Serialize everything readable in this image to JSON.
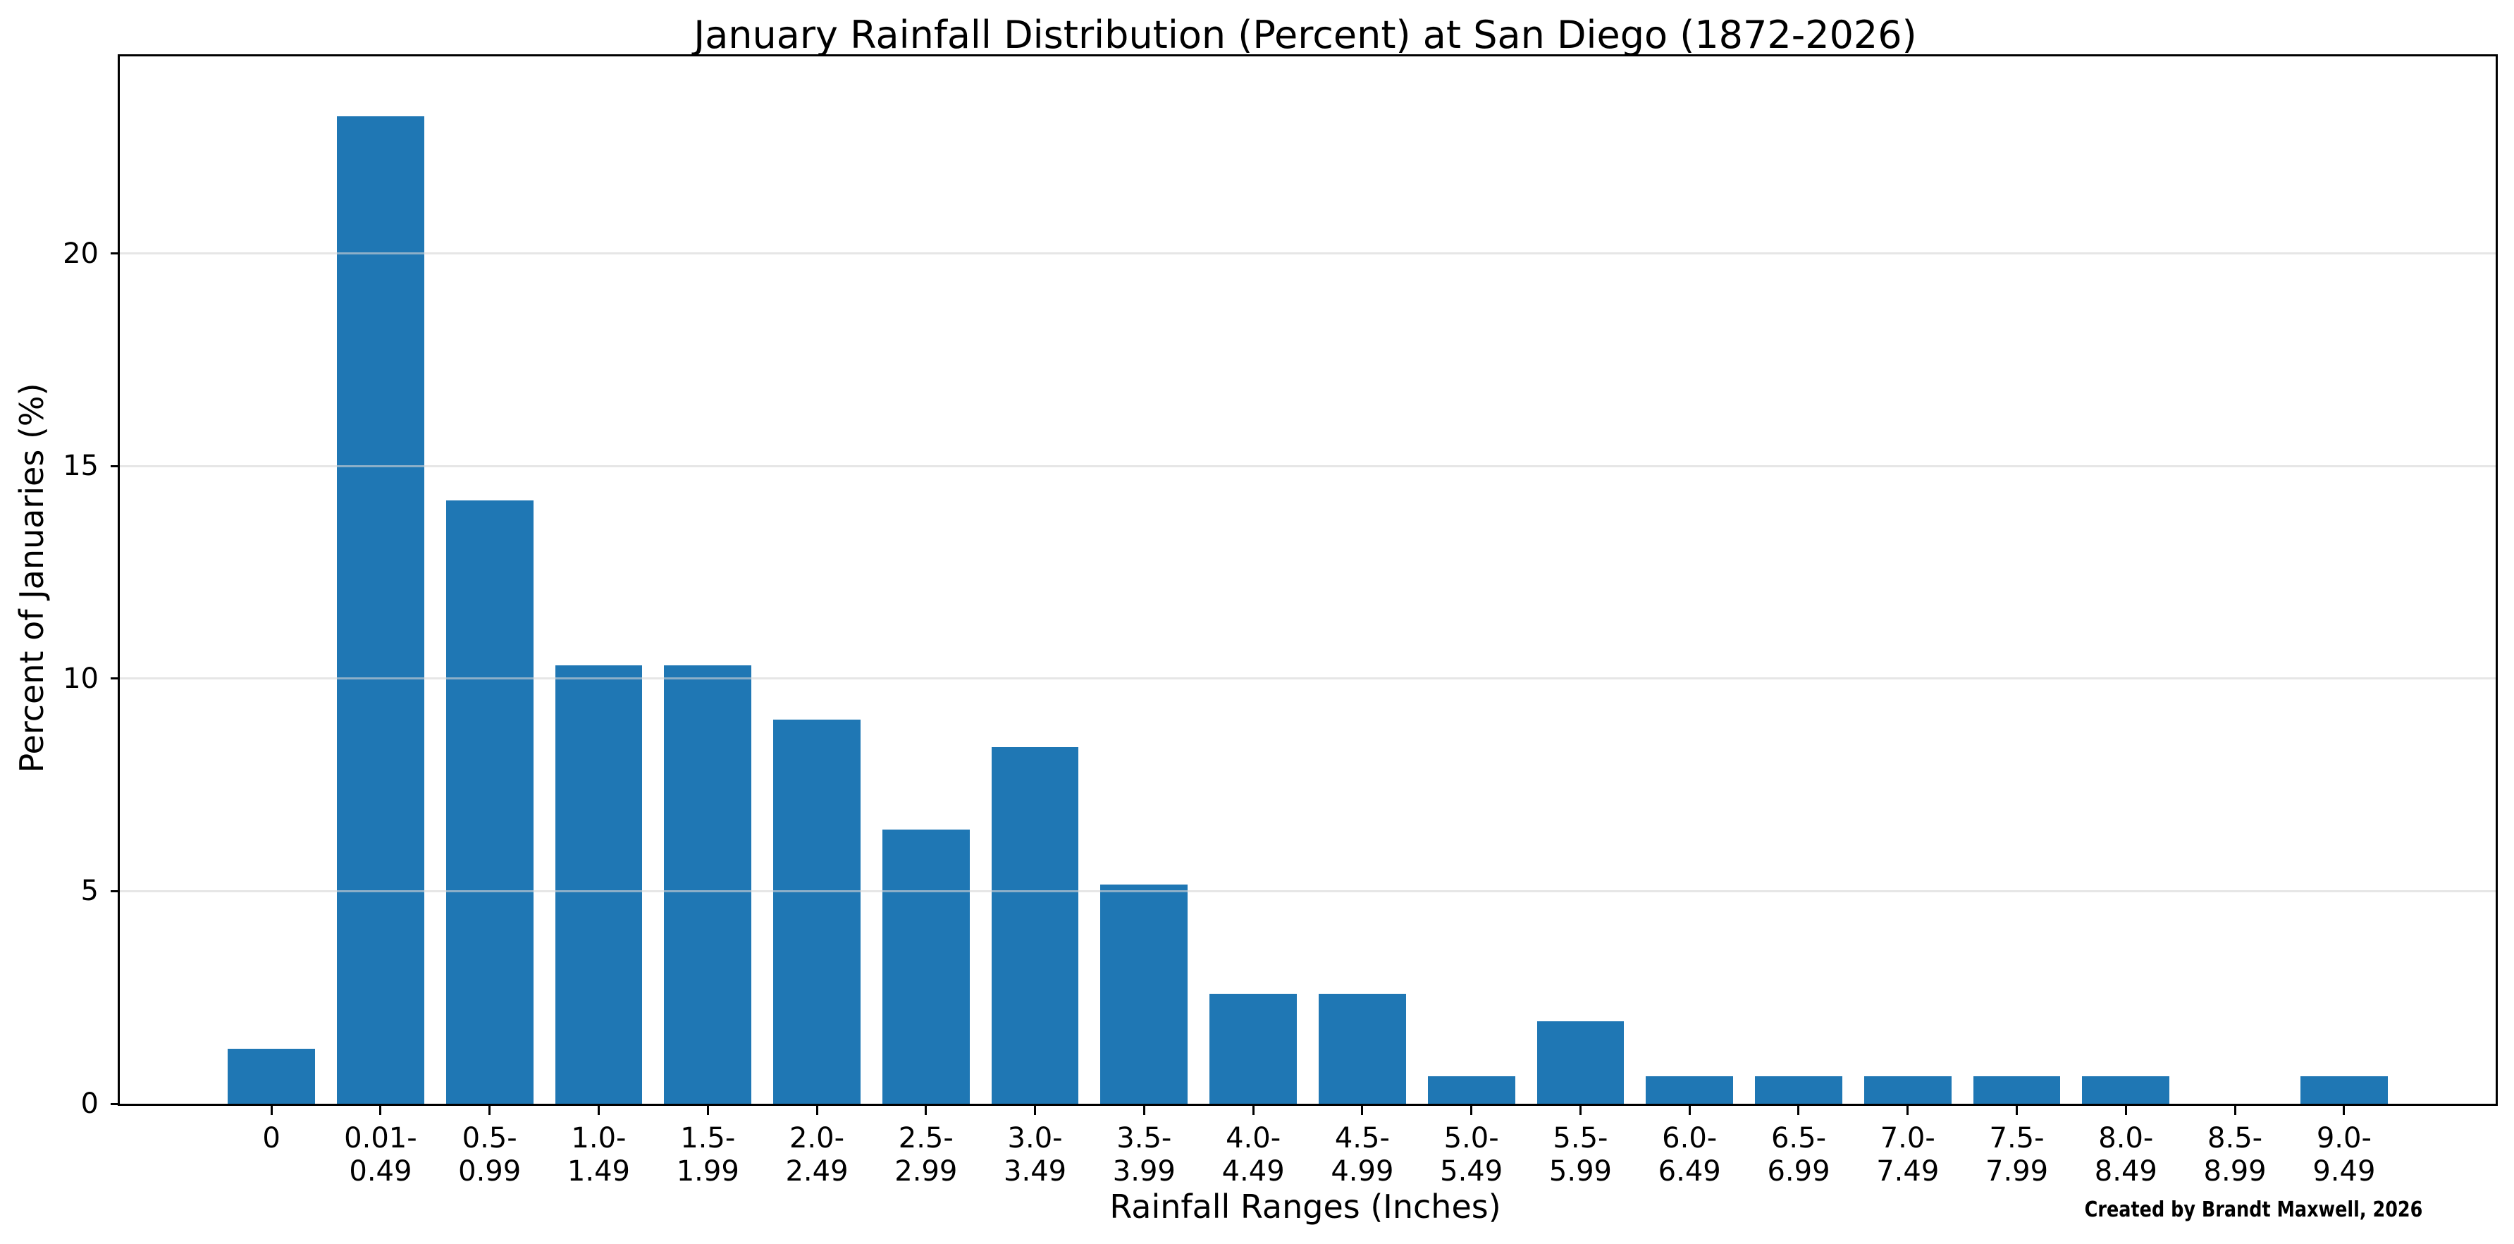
{
  "figure": {
    "title": "January Rainfall Distribution (Percent) at San Diego (1872-2026)",
    "x_axis_label": "Rainfall Ranges (Inches)",
    "y_axis_label": "Percent of Januaries (%)",
    "credit": "Created by Brandt Maxwell, 2026"
  },
  "chart_data": {
    "type": "bar",
    "title": "January Rainfall Distribution (Percent) at San Diego (1872-2026)",
    "xlabel": "Rainfall Ranges (Inches)",
    "ylabel": "Percent of Januaries (%)",
    "annotation": "Created by Brandt Maxwell, 2026",
    "categories": [
      "0",
      "0.01-\n0.49",
      "0.5-\n0.99",
      "1.0-\n1.49",
      "1.5-\n1.99",
      "2.0-\n2.49",
      "2.5-\n2.99",
      "3.0-\n3.49",
      "3.5-\n3.99",
      "4.0-\n4.49",
      "4.5-\n4.99",
      "5.0-\n5.49",
      "5.5-\n5.99",
      "6.0-\n6.49",
      "6.5-\n6.99",
      "7.0-\n7.49",
      "7.5-\n7.99",
      "8.0-\n8.49",
      "8.5-\n8.99",
      "9.0-\n9.49"
    ],
    "values": [
      1.29,
      23.23,
      14.19,
      10.32,
      10.32,
      9.03,
      6.45,
      8.39,
      5.16,
      2.58,
      2.58,
      0.65,
      1.94,
      0.65,
      0.65,
      0.65,
      0.65,
      0.65,
      0,
      0.65
    ],
    "yticks": [
      0,
      5,
      10,
      15,
      20
    ],
    "ylim": [
      0,
      24.64
    ],
    "bar_color": "#1f77b4",
    "grid": "horizontal",
    "gridline_color": "#e6e6e6",
    "legend": "none"
  }
}
